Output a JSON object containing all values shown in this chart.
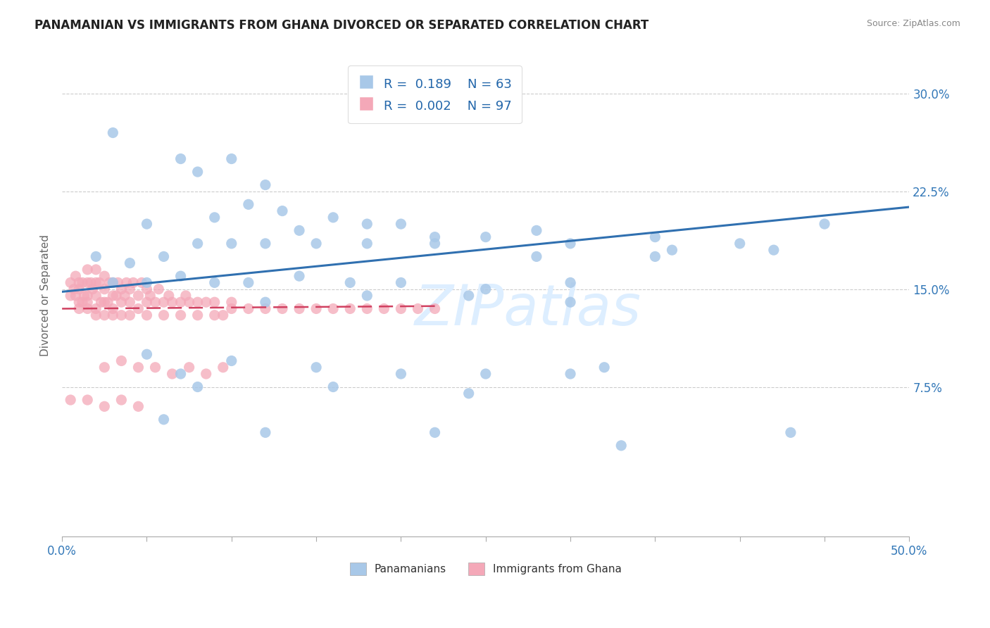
{
  "title": "PANAMANIAN VS IMMIGRANTS FROM GHANA DIVORCED OR SEPARATED CORRELATION CHART",
  "source": "Source: ZipAtlas.com",
  "ylabel": "Divorced or Separated",
  "xlim": [
    0.0,
    0.5
  ],
  "ylim": [
    -0.04,
    0.33
  ],
  "xtick_positions": [
    0.0,
    0.05,
    0.1,
    0.15,
    0.2,
    0.25,
    0.3,
    0.35,
    0.4,
    0.45,
    0.5
  ],
  "xtick_labels": [
    "0.0%",
    "",
    "",
    "",
    "",
    "",
    "",
    "",
    "",
    "",
    "50.0%"
  ],
  "ytick_positions": [
    0.075,
    0.15,
    0.225,
    0.3
  ],
  "ytick_labels": [
    "7.5%",
    "15.0%",
    "22.5%",
    "30.0%"
  ],
  "grid_color": "#cccccc",
  "blue_color": "#a8c8e8",
  "pink_color": "#f4a8b8",
  "blue_line_color": "#3070b0",
  "pink_line_color": "#d04060",
  "watermark_color": "#ddeeff",
  "blue_r": 0.189,
  "blue_n": 63,
  "pink_r": 0.002,
  "pink_n": 97,
  "blue_trend_x": [
    0.0,
    0.5
  ],
  "blue_trend_y": [
    0.148,
    0.213
  ],
  "pink_trend_x": [
    0.0,
    0.22
  ],
  "pink_trend_y": [
    0.135,
    0.137
  ],
  "blue_x": [
    0.03,
    0.07,
    0.08,
    0.1,
    0.12,
    0.13,
    0.05,
    0.09,
    0.11,
    0.14,
    0.16,
    0.18,
    0.2,
    0.22,
    0.25,
    0.28,
    0.3,
    0.35,
    0.4,
    0.45,
    0.02,
    0.04,
    0.06,
    0.08,
    0.1,
    0.12,
    0.15,
    0.18,
    0.22,
    0.28,
    0.35,
    0.42,
    0.03,
    0.05,
    0.07,
    0.09,
    0.11,
    0.14,
    0.17,
    0.2,
    0.25,
    0.3,
    0.12,
    0.18,
    0.24,
    0.3,
    0.36,
    0.05,
    0.1,
    0.15,
    0.2,
    0.25,
    0.3,
    0.08,
    0.16,
    0.24,
    0.32,
    0.06,
    0.12,
    0.22,
    0.33,
    0.43,
    0.07
  ],
  "blue_y": [
    0.27,
    0.25,
    0.24,
    0.25,
    0.23,
    0.21,
    0.2,
    0.205,
    0.215,
    0.195,
    0.205,
    0.2,
    0.2,
    0.19,
    0.19,
    0.195,
    0.185,
    0.19,
    0.185,
    0.2,
    0.175,
    0.17,
    0.175,
    0.185,
    0.185,
    0.185,
    0.185,
    0.185,
    0.185,
    0.175,
    0.175,
    0.18,
    0.155,
    0.155,
    0.16,
    0.155,
    0.155,
    0.16,
    0.155,
    0.155,
    0.15,
    0.155,
    0.14,
    0.145,
    0.145,
    0.14,
    0.18,
    0.1,
    0.095,
    0.09,
    0.085,
    0.085,
    0.085,
    0.075,
    0.075,
    0.07,
    0.09,
    0.05,
    0.04,
    0.04,
    0.03,
    0.04,
    0.085
  ],
  "pink_x": [
    0.005,
    0.005,
    0.007,
    0.008,
    0.008,
    0.01,
    0.01,
    0.01,
    0.01,
    0.012,
    0.012,
    0.013,
    0.015,
    0.015,
    0.015,
    0.015,
    0.015,
    0.017,
    0.018,
    0.02,
    0.02,
    0.02,
    0.02,
    0.02,
    0.022,
    0.023,
    0.025,
    0.025,
    0.025,
    0.025,
    0.027,
    0.028,
    0.03,
    0.03,
    0.03,
    0.03,
    0.032,
    0.033,
    0.035,
    0.035,
    0.035,
    0.037,
    0.038,
    0.04,
    0.04,
    0.04,
    0.042,
    0.045,
    0.045,
    0.047,
    0.05,
    0.05,
    0.05,
    0.052,
    0.055,
    0.057,
    0.06,
    0.06,
    0.063,
    0.065,
    0.07,
    0.07,
    0.073,
    0.075,
    0.08,
    0.08,
    0.085,
    0.09,
    0.09,
    0.095,
    0.1,
    0.1,
    0.11,
    0.12,
    0.13,
    0.14,
    0.15,
    0.16,
    0.17,
    0.18,
    0.19,
    0.2,
    0.21,
    0.22,
    0.025,
    0.035,
    0.045,
    0.055,
    0.065,
    0.075,
    0.085,
    0.095,
    0.005,
    0.015,
    0.025,
    0.035,
    0.045
  ],
  "pink_y": [
    0.145,
    0.155,
    0.15,
    0.145,
    0.16,
    0.135,
    0.14,
    0.15,
    0.155,
    0.14,
    0.155,
    0.145,
    0.135,
    0.14,
    0.145,
    0.155,
    0.165,
    0.155,
    0.15,
    0.13,
    0.135,
    0.145,
    0.155,
    0.165,
    0.155,
    0.14,
    0.13,
    0.14,
    0.15,
    0.16,
    0.14,
    0.155,
    0.13,
    0.135,
    0.145,
    0.155,
    0.145,
    0.155,
    0.13,
    0.14,
    0.15,
    0.145,
    0.155,
    0.13,
    0.14,
    0.15,
    0.155,
    0.135,
    0.145,
    0.155,
    0.13,
    0.14,
    0.15,
    0.145,
    0.14,
    0.15,
    0.13,
    0.14,
    0.145,
    0.14,
    0.13,
    0.14,
    0.145,
    0.14,
    0.13,
    0.14,
    0.14,
    0.13,
    0.14,
    0.13,
    0.135,
    0.14,
    0.135,
    0.135,
    0.135,
    0.135,
    0.135,
    0.135,
    0.135,
    0.135,
    0.135,
    0.135,
    0.135,
    0.135,
    0.09,
    0.095,
    0.09,
    0.09,
    0.085,
    0.09,
    0.085,
    0.09,
    0.065,
    0.065,
    0.06,
    0.065,
    0.06
  ]
}
